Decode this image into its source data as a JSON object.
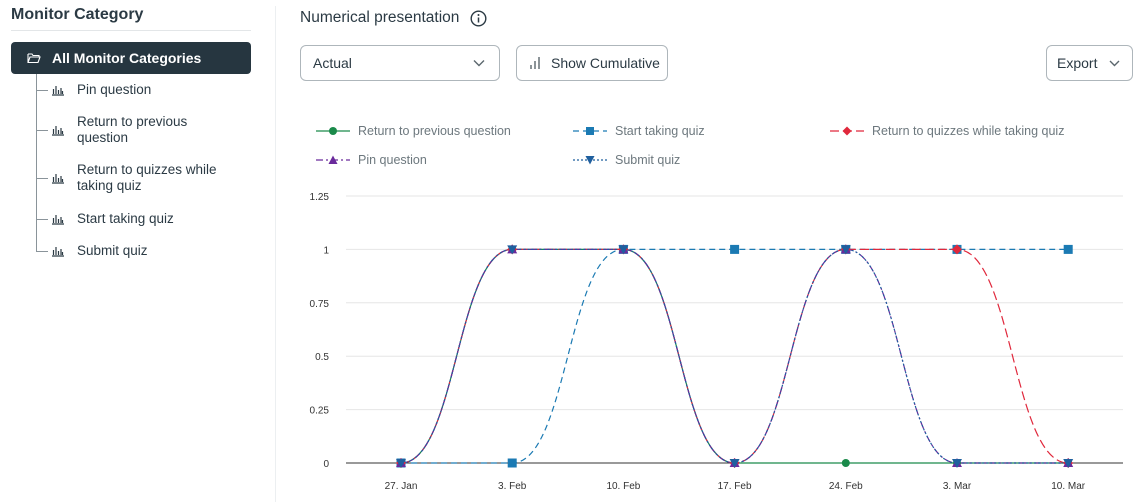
{
  "sidebar": {
    "title": "Monitor Category",
    "all_label": "All Monitor Categories",
    "items": [
      {
        "label": "Pin question"
      },
      {
        "label": "Return to previous question"
      },
      {
        "label": "Return to quizzes while taking quiz"
      },
      {
        "label": "Start taking quiz"
      },
      {
        "label": "Submit quiz"
      }
    ]
  },
  "header": {
    "title": "Numerical presentation",
    "select_value": "Actual",
    "cumulative_label": "Show Cumulative",
    "export_label": "Export"
  },
  "colors": {
    "sidebar_active_bg": "#263640",
    "return_prev": "#1a8a4a",
    "start_quiz": "#1b7ab3",
    "return_quizzes": "#e0283c",
    "pin_question": "#6a2a9c",
    "submit_quiz": "#1f5f9e"
  },
  "chart_data": {
    "type": "line",
    "categories": [
      "27. Jan",
      "3. Feb",
      "10. Feb",
      "17. Feb",
      "24. Feb",
      "3. Mar",
      "10. Mar"
    ],
    "y_ticks": [
      "0",
      "0.25",
      "0.5",
      "0.75",
      "1",
      "1.25"
    ],
    "ylim": [
      0,
      1.25
    ],
    "grid": true,
    "legend_position": "top",
    "series": [
      {
        "name": "Return to previous question",
        "marker": "circle",
        "dash": "solid",
        "color": "#1a8a4a",
        "values": [
          0,
          1,
          1,
          0,
          0,
          0,
          0
        ]
      },
      {
        "name": "Start taking quiz",
        "marker": "square",
        "dash": "dashed",
        "color": "#1b7ab3",
        "values": [
          0,
          0,
          1,
          1,
          1,
          1,
          1
        ]
      },
      {
        "name": "Return to quizzes while taking quiz",
        "marker": "diamond",
        "dash": "longdash",
        "color": "#e0283c",
        "values": [
          0,
          1,
          1,
          0,
          1,
          1,
          0
        ]
      },
      {
        "name": "Pin question",
        "marker": "triangle",
        "dash": "dashdot",
        "color": "#6a2a9c",
        "values": [
          0,
          1,
          1,
          0,
          1,
          0,
          0
        ]
      },
      {
        "name": "Submit quiz",
        "marker": "triangle-down",
        "dash": "dotted",
        "color": "#1f5f9e",
        "values": [
          0,
          1,
          1,
          0,
          1,
          0,
          0
        ]
      }
    ]
  }
}
